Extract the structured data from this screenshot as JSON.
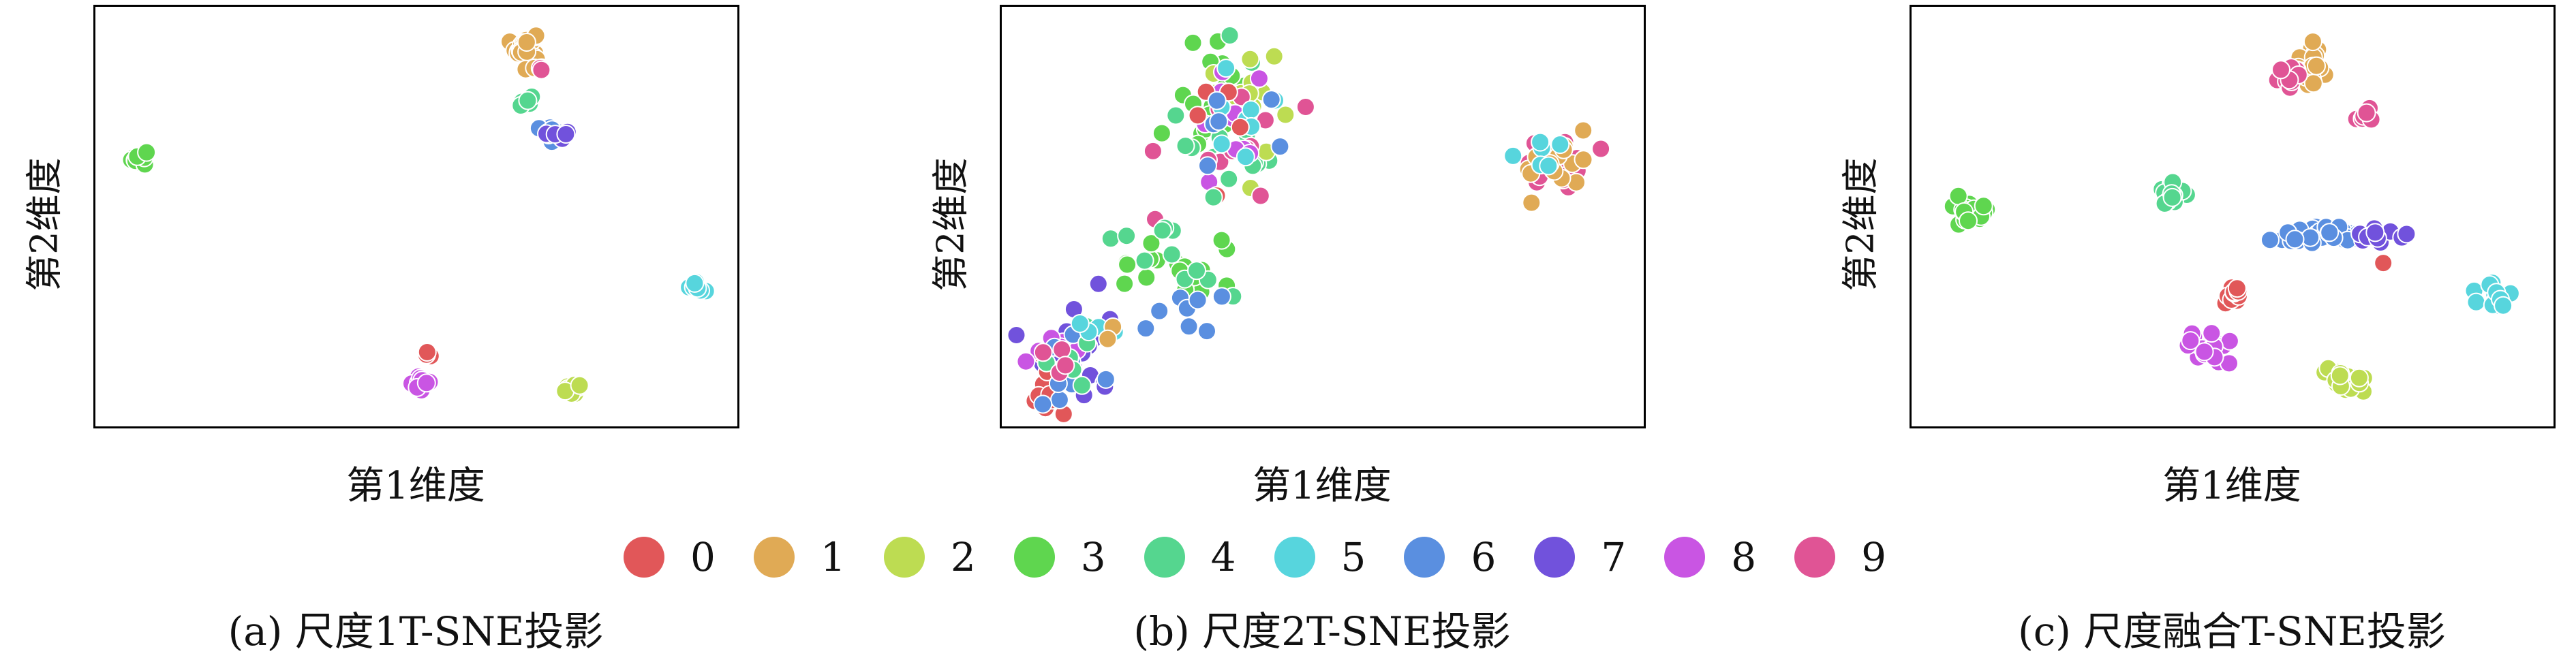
{
  "palette": [
    "#e15759",
    "#e0aa55",
    "#bddc52",
    "#5fd64f",
    "#55d68f",
    "#57d5dd",
    "#5a8fe0",
    "#7152dc",
    "#c955e3",
    "#e05495"
  ],
  "legend": [
    {
      "label": "0",
      "color": "#e15759"
    },
    {
      "label": "1",
      "color": "#e0aa55"
    },
    {
      "label": "2",
      "color": "#bddc52"
    },
    {
      "label": "3",
      "color": "#5fd64f"
    },
    {
      "label": "4",
      "color": "#55d68f"
    },
    {
      "label": "5",
      "color": "#57d5dd"
    },
    {
      "label": "6",
      "color": "#5a8fe0"
    },
    {
      "label": "7",
      "color": "#7152dc"
    },
    {
      "label": "8",
      "color": "#c955e3"
    },
    {
      "label": "9",
      "color": "#e05495"
    }
  ],
  "chart_data": [
    {
      "type": "scatter",
      "title": "",
      "caption": "(a) 尺度1T-SNE投影",
      "xlabel": "第1维度",
      "ylabel": "第2维度",
      "grid": false,
      "xlim": [
        0,
        100
      ],
      "ylim": [
        0,
        100
      ],
      "clusters": [
        {
          "label": 3,
          "cx": 5.5,
          "cy": 64.5,
          "sx": 0.6,
          "sy": 1.0,
          "n": 14
        },
        {
          "label": 1,
          "cx": 67.5,
          "cy": 92.5,
          "sx": 1.0,
          "sy": 2.0,
          "n": 30
        },
        {
          "label": 9,
          "cx": 70,
          "cy": 86.5,
          "sx": 0.4,
          "sy": 0.5,
          "n": 3
        },
        {
          "label": 4,
          "cx": 68,
          "cy": 78.5,
          "sx": 0.7,
          "sy": 1.0,
          "n": 8
        },
        {
          "label": 6,
          "cx": 71.5,
          "cy": 70.8,
          "sx": 1.5,
          "sy": 1.0,
          "n": 16
        },
        {
          "label": 7,
          "cx": 73,
          "cy": 70.5,
          "sx": 0.6,
          "sy": 0.5,
          "n": 5
        },
        {
          "label": 5,
          "cx": 95,
          "cy": 33,
          "sx": 0.6,
          "sy": 1.0,
          "n": 10
        },
        {
          "label": 0,
          "cx": 51.5,
          "cy": 15.5,
          "sx": 0.3,
          "sy": 0.4,
          "n": 4
        },
        {
          "label": 8,
          "cx": 50.5,
          "cy": 8.5,
          "sx": 0.8,
          "sy": 1.0,
          "n": 14
        },
        {
          "label": 2,
          "cx": 75,
          "cy": 7,
          "sx": 0.7,
          "sy": 1.0,
          "n": 12
        }
      ]
    },
    {
      "type": "scatter",
      "title": "",
      "caption": "(b) 尺度2T-SNE投影",
      "xlabel": "第1维度",
      "ylabel": "第2维度",
      "grid": false,
      "xlim": [
        0,
        100
      ],
      "ylim": [
        0,
        100
      ],
      "clusters": [
        {
          "label": 9,
          "cx": 87,
          "cy": 63,
          "sx": 3.0,
          "sy": 3.5,
          "n": 20
        },
        {
          "label": 1,
          "cx": 88,
          "cy": 64,
          "sx": 2.5,
          "sy": 3.5,
          "n": 16
        },
        {
          "label": 5,
          "cx": 85,
          "cy": 65,
          "sx": 2.0,
          "sy": 2.5,
          "n": 6
        },
        {
          "label": 3,
          "cx": 33,
          "cy": 80,
          "sx": 3.5,
          "sy": 9.0,
          "n": 20
        },
        {
          "label": 4,
          "cx": 35,
          "cy": 74,
          "sx": 4.0,
          "sy": 10.0,
          "n": 18
        },
        {
          "label": 2,
          "cx": 37,
          "cy": 78,
          "sx": 4.0,
          "sy": 8.0,
          "n": 18
        },
        {
          "label": 9,
          "cx": 36,
          "cy": 70,
          "sx": 4.0,
          "sy": 9.0,
          "n": 12
        },
        {
          "label": 8,
          "cx": 35,
          "cy": 73,
          "sx": 4.0,
          "sy": 9.0,
          "n": 10
        },
        {
          "label": 5,
          "cx": 36,
          "cy": 75,
          "sx": 4.0,
          "sy": 9.0,
          "n": 8
        },
        {
          "label": 0,
          "cx": 34,
          "cy": 72,
          "sx": 3.5,
          "sy": 8.0,
          "n": 5
        },
        {
          "label": 6,
          "cx": 39,
          "cy": 70,
          "sx": 5.0,
          "sy": 6.0,
          "n": 6
        },
        {
          "label": 3,
          "cx": 26,
          "cy": 37,
          "sx": 5.0,
          "sy": 5.0,
          "n": 18
        },
        {
          "label": 4,
          "cx": 27,
          "cy": 40,
          "sx": 5.0,
          "sy": 6.0,
          "n": 12
        },
        {
          "label": 6,
          "cx": 27,
          "cy": 27,
          "sx": 3.0,
          "sy": 5.0,
          "n": 8
        },
        {
          "label": 7,
          "cx": 9,
          "cy": 17,
          "sx": 4.0,
          "sy": 6.0,
          "n": 22
        },
        {
          "label": 0,
          "cx": 6,
          "cy": 7,
          "sx": 2.0,
          "sy": 4.0,
          "n": 10
        },
        {
          "label": 8,
          "cx": 9,
          "cy": 18,
          "sx": 3.0,
          "sy": 5.0,
          "n": 8
        },
        {
          "label": 6,
          "cx": 9,
          "cy": 11,
          "sx": 3.0,
          "sy": 5.0,
          "n": 8
        },
        {
          "label": 4,
          "cx": 10,
          "cy": 15,
          "sx": 3.0,
          "sy": 5.0,
          "n": 6
        },
        {
          "label": 5,
          "cx": 12,
          "cy": 23,
          "sx": 3.0,
          "sy": 3.0,
          "n": 4
        },
        {
          "label": 9,
          "cx": 7,
          "cy": 10,
          "sx": 2.0,
          "sy": 4.0,
          "n": 4
        },
        {
          "label": 1,
          "cx": 14,
          "cy": 20,
          "sx": 2.0,
          "sy": 3.0,
          "n": 2
        }
      ]
    },
    {
      "type": "scatter",
      "title": "",
      "caption": "(c) 尺度融合T-SNE投影",
      "xlabel": "第1维度",
      "ylabel": "第2维度",
      "grid": false,
      "xlim": [
        0,
        100
      ],
      "ylim": [
        0,
        100
      ],
      "clusters": [
        {
          "label": 1,
          "cx": 63,
          "cy": 88,
          "sx": 1.6,
          "sy": 2.8,
          "n": 32
        },
        {
          "label": 9,
          "cx": 59.5,
          "cy": 85,
          "sx": 1.2,
          "sy": 1.5,
          "n": 10
        },
        {
          "label": 9,
          "cx": 70.5,
          "cy": 74.5,
          "sx": 0.8,
          "sy": 1.0,
          "n": 6
        },
        {
          "label": 3,
          "cx": 8,
          "cy": 52,
          "sx": 1.6,
          "sy": 1.8,
          "n": 24
        },
        {
          "label": 4,
          "cx": 40,
          "cy": 55,
          "sx": 1.2,
          "sy": 2.0,
          "n": 18
        },
        {
          "label": 6,
          "cx": 65,
          "cy": 45,
          "sx": 3.8,
          "sy": 1.4,
          "n": 30
        },
        {
          "label": 7,
          "cx": 74,
          "cy": 45,
          "sx": 2.0,
          "sy": 1.2,
          "n": 12
        },
        {
          "label": 0,
          "cx": 74.5,
          "cy": 38.5,
          "sx": 0.3,
          "sy": 0.3,
          "n": 1
        },
        {
          "label": 5,
          "cx": 92,
          "cy": 29.5,
          "sx": 1.5,
          "sy": 1.5,
          "n": 16
        },
        {
          "label": 0,
          "cx": 50,
          "cy": 31,
          "sx": 1.1,
          "sy": 1.2,
          "n": 14
        },
        {
          "label": 8,
          "cx": 46,
          "cy": 17,
          "sx": 1.8,
          "sy": 2.0,
          "n": 26
        },
        {
          "label": 2,
          "cx": 68,
          "cy": 9,
          "sx": 1.8,
          "sy": 1.6,
          "n": 24
        }
      ]
    }
  ]
}
